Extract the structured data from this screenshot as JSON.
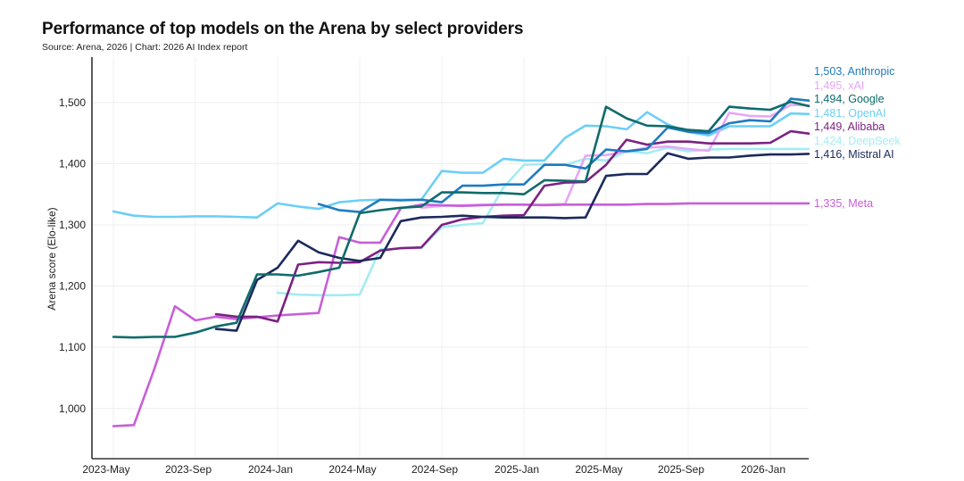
{
  "chart_data": {
    "type": "line",
    "title": "Performance of top models on the Arena by select providers",
    "subtitle": "Source: Arena, 2026 | Chart: 2026 AI Index report",
    "xlabel": "",
    "ylabel": "Arena score (Elo-like)",
    "ylim": [
      918,
      1574
    ],
    "yticks": [
      1000,
      1100,
      1200,
      1300,
      1400,
      1500
    ],
    "ytick_labels": [
      "1,000",
      "1,100",
      "1,200",
      "1,300",
      "1,400",
      "1,500"
    ],
    "xtick_labels": [
      "2023-May",
      "2023-Sep",
      "2024-Jan",
      "2024-May",
      "2024-Sep",
      "2025-Jan",
      "2025-May",
      "2025-Sep",
      "2026-Jan"
    ],
    "xtick_index": [
      0,
      4,
      8,
      12,
      16,
      20,
      24,
      28,
      32
    ],
    "grid": true,
    "legend": "direct labels at right end of lines",
    "x": [
      "2023-05",
      "2023-06",
      "2023-07",
      "2023-08",
      "2023-09",
      "2023-10",
      "2023-11",
      "2023-12",
      "2024-01",
      "2024-02",
      "2024-03",
      "2024-04",
      "2024-05",
      "2024-06",
      "2024-07",
      "2024-08",
      "2024-09",
      "2024-10",
      "2024-11",
      "2024-12",
      "2025-01",
      "2025-02",
      "2025-03",
      "2025-04",
      "2025-05",
      "2025-06",
      "2025-07",
      "2025-08",
      "2025-09",
      "2025-10",
      "2025-11",
      "2025-12",
      "2026-01",
      "2026-02",
      "2026-03"
    ],
    "series": [
      {
        "name": "Anthropic",
        "color": "#1f7bbf",
        "end_label": "1,503, Anthropic",
        "final": 1503,
        "values": [
          null,
          null,
          null,
          null,
          null,
          null,
          null,
          null,
          null,
          null,
          1334,
          1324,
          1321,
          1341,
          1340,
          1341,
          1337,
          1364,
          1364,
          1366,
          1366,
          1398,
          1398,
          1392,
          1423,
          1420,
          1424,
          1459,
          1452,
          1450,
          1466,
          1471,
          1469,
          1506,
          1503
        ]
      },
      {
        "name": "xAI",
        "color": "#e8a6f6",
        "end_label": "1,495, xAI",
        "final": 1495,
        "values": [
          null,
          null,
          null,
          null,
          null,
          null,
          null,
          null,
          null,
          null,
          null,
          null,
          null,
          null,
          null,
          1328,
          1331,
          1332,
          1333,
          1333,
          1333,
          1333,
          1334,
          1413,
          1414,
          1420,
          1426,
          1428,
          1424,
          1421,
          1483,
          1478,
          1477,
          1496,
          1495
        ]
      },
      {
        "name": "Google",
        "color": "#0f6b6b",
        "end_label": "1,494, Google",
        "final": 1494,
        "values": [
          1117,
          1116,
          1117,
          1117,
          1124,
          1134,
          1140,
          1219,
          1219,
          1217,
          1223,
          1230,
          1319,
          1324,
          1328,
          1330,
          1353,
          1353,
          1352,
          1352,
          1350,
          1373,
          1372,
          1371,
          1493,
          1474,
          1462,
          1461,
          1455,
          1453,
          1493,
          1490,
          1488,
          1501,
          1494
        ]
      },
      {
        "name": "OpenAI",
        "color": "#6ccff6",
        "end_label": "1,481, OpenAI",
        "final": 1481,
        "values": [
          1322,
          1315,
          1313,
          1313,
          1314,
          1314,
          1313,
          1312,
          1335,
          1330,
          1326,
          1337,
          1340,
          1341,
          1341,
          1341,
          1388,
          1385,
          1385,
          1408,
          1405,
          1405,
          1442,
          1462,
          1461,
          1456,
          1484,
          1464,
          1452,
          1446,
          1461,
          1461,
          1461,
          1482,
          1481
        ]
      },
      {
        "name": "Alibaba",
        "color": "#7b2282",
        "end_label": "1,449, Alibaba",
        "final": 1449,
        "values": [
          null,
          null,
          null,
          null,
          null,
          1154,
          1150,
          1150,
          1142,
          1235,
          1239,
          1238,
          1239,
          1258,
          1262,
          1263,
          1300,
          1309,
          1313,
          1315,
          1316,
          1364,
          1369,
          1370,
          1398,
          1439,
          1431,
          1436,
          1436,
          1433,
          1433,
          1433,
          1434,
          1453,
          1449
        ]
      },
      {
        "name": "DeepSeek",
        "color": "#a3ecf3",
        "end_label": "1,424, DeepSeek",
        "final": 1424,
        "values": [
          null,
          null,
          null,
          null,
          null,
          null,
          null,
          null,
          1189,
          1186,
          1185,
          1185,
          1186,
          1260,
          1261,
          1262,
          1296,
          1300,
          1303,
          1361,
          1398,
          1399,
          1398,
          1408,
          1405,
          1420,
          1417,
          1426,
          1420,
          1423,
          1424,
          1424,
          1424,
          1424,
          1424
        ]
      },
      {
        "name": "Mistral AI",
        "color": "#1b2a5c",
        "end_label": "1,416, Mistral AI",
        "final": 1416,
        "values": [
          null,
          null,
          null,
          null,
          null,
          1130,
          1127,
          1210,
          1230,
          1274,
          1255,
          1246,
          1241,
          1246,
          1306,
          1312,
          1313,
          1315,
          1313,
          1312,
          1312,
          1312,
          1311,
          1312,
          1380,
          1383,
          1383,
          1417,
          1408,
          1410,
          1410,
          1413,
          1415,
          1415,
          1416
        ]
      },
      {
        "name": "Meta",
        "color": "#c75fd8",
        "end_label": "1,335, Meta",
        "final": 1335,
        "values": [
          971,
          973,
          1065,
          1167,
          1144,
          1150,
          1146,
          1149,
          1152,
          1154,
          1156,
          1280,
          1271,
          1271,
          1327,
          1333,
          1332,
          1331,
          1332,
          1333,
          1333,
          1332,
          1333,
          1333,
          1333,
          1333,
          1334,
          1334,
          1335,
          1335,
          1335,
          1335,
          1335,
          1335,
          1335
        ]
      }
    ]
  }
}
